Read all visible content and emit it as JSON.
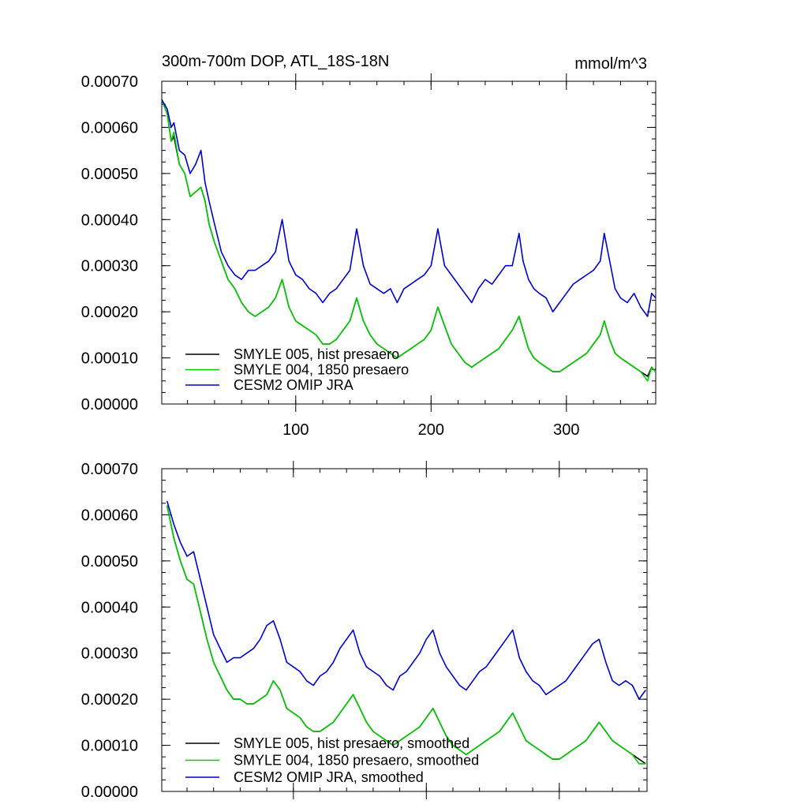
{
  "chart_data": [
    {
      "type": "line",
      "title": "300m-700m DOP, ATL_18S-18N",
      "units": "mmol/m^3",
      "xlabel": "",
      "ylabel": "",
      "xlim": [
        1,
        366
      ],
      "ylim": [
        0,
        0.0007
      ],
      "xticks": [
        100,
        200,
        300
      ],
      "xtick_labels": [
        "100",
        "200",
        "300"
      ],
      "yticks": [
        0,
        0.0001,
        0.0002,
        0.0003,
        0.0004,
        0.0005,
        0.0006,
        0.0007
      ],
      "ytick_labels": [
        "0.00000",
        "0.00010",
        "0.00020",
        "0.00030",
        "0.00040",
        "0.00050",
        "0.00060",
        "0.00070"
      ],
      "legend_position": "bottom-left",
      "series": [
        {
          "name": "SMYLE 005, hist presaero",
          "color": "#000000",
          "x": [
            1,
            5,
            8,
            10,
            14,
            18,
            22,
            26,
            30,
            33,
            36,
            40,
            45,
            50,
            55,
            60,
            65,
            70,
            75,
            80,
            85,
            90,
            95,
            100,
            105,
            110,
            115,
            120,
            125,
            130,
            135,
            140,
            145,
            150,
            155,
            160,
            165,
            170,
            175,
            180,
            185,
            190,
            195,
            200,
            205,
            210,
            215,
            220,
            225,
            230,
            235,
            240,
            245,
            250,
            255,
            260,
            265,
            268,
            272,
            276,
            280,
            285,
            290,
            295,
            300,
            305,
            310,
            315,
            320,
            325,
            328,
            332,
            336,
            340,
            345,
            350,
            355,
            360,
            363,
            366
          ],
          "values": [
            0.00066,
            0.00063,
            0.00057,
            0.00058,
            0.00052,
            0.0005,
            0.00045,
            0.00046,
            0.00047,
            0.00044,
            0.00039,
            0.00035,
            0.00031,
            0.00027,
            0.00025,
            0.00022,
            0.0002,
            0.00019,
            0.0002,
            0.00021,
            0.00023,
            0.00027,
            0.00021,
            0.00018,
            0.00017,
            0.00016,
            0.00015,
            0.00013,
            0.00013,
            0.00014,
            0.00016,
            0.00018,
            0.00023,
            0.00018,
            0.00015,
            0.00013,
            0.00012,
            0.00011,
            0.0001,
            0.00011,
            0.00012,
            0.00013,
            0.00014,
            0.00016,
            0.00021,
            0.00017,
            0.00013,
            0.00011,
            9e-05,
            8e-05,
            9e-05,
            0.0001,
            0.00011,
            0.00012,
            0.00014,
            0.00016,
            0.00019,
            0.00016,
            0.00012,
            0.0001,
            9e-05,
            8e-05,
            7e-05,
            7e-05,
            8e-05,
            9e-05,
            0.0001,
            0.00011,
            0.00013,
            0.00015,
            0.00018,
            0.00014,
            0.00011,
            0.0001,
            9e-05,
            8e-05,
            7e-05,
            6e-05,
            8e-05,
            7e-05
          ]
        },
        {
          "name": "SMYLE 004, 1850 presaero",
          "color": "#00cc00",
          "x": [
            1,
            5,
            8,
            10,
            14,
            18,
            22,
            26,
            30,
            33,
            36,
            40,
            45,
            50,
            55,
            60,
            65,
            70,
            75,
            80,
            85,
            90,
            95,
            100,
            105,
            110,
            115,
            120,
            125,
            130,
            135,
            140,
            145,
            150,
            155,
            160,
            165,
            170,
            175,
            180,
            185,
            190,
            195,
            200,
            205,
            210,
            215,
            220,
            225,
            230,
            235,
            240,
            245,
            250,
            255,
            260,
            265,
            268,
            272,
            276,
            280,
            285,
            290,
            295,
            300,
            305,
            310,
            315,
            320,
            325,
            328,
            332,
            336,
            340,
            345,
            350,
            355,
            360,
            363,
            366
          ],
          "values": [
            0.00066,
            0.00063,
            0.00057,
            0.00059,
            0.00052,
            0.0005,
            0.00045,
            0.00046,
            0.00047,
            0.00044,
            0.00039,
            0.00035,
            0.00031,
            0.00027,
            0.00025,
            0.00022,
            0.0002,
            0.00019,
            0.0002,
            0.00021,
            0.00023,
            0.00027,
            0.00021,
            0.00018,
            0.00017,
            0.00016,
            0.00015,
            0.00013,
            0.00013,
            0.00014,
            0.00016,
            0.00018,
            0.00023,
            0.00018,
            0.00015,
            0.00013,
            0.00012,
            0.00011,
            0.0001,
            0.00011,
            0.00012,
            0.00013,
            0.00014,
            0.00016,
            0.00021,
            0.00017,
            0.00013,
            0.00011,
            9e-05,
            8e-05,
            9e-05,
            0.0001,
            0.00011,
            0.00012,
            0.00014,
            0.00016,
            0.00019,
            0.00016,
            0.00012,
            0.0001,
            9e-05,
            8e-05,
            7e-05,
            7e-05,
            8e-05,
            9e-05,
            0.0001,
            0.00011,
            0.00013,
            0.00015,
            0.00018,
            0.00014,
            0.00011,
            0.0001,
            9e-05,
            8e-05,
            7e-05,
            5e-05,
            8e-05,
            7e-05
          ]
        },
        {
          "name": "CESM2 OMIP JRA",
          "color": "#0000cc",
          "x": [
            1,
            5,
            8,
            10,
            14,
            18,
            22,
            26,
            30,
            33,
            36,
            40,
            45,
            50,
            55,
            60,
            65,
            70,
            75,
            80,
            85,
            90,
            95,
            100,
            105,
            110,
            115,
            120,
            125,
            130,
            135,
            140,
            145,
            150,
            155,
            160,
            165,
            170,
            175,
            180,
            185,
            190,
            195,
            200,
            205,
            210,
            215,
            220,
            225,
            230,
            235,
            240,
            245,
            250,
            255,
            260,
            265,
            268,
            272,
            276,
            280,
            285,
            290,
            295,
            300,
            305,
            310,
            315,
            320,
            325,
            328,
            332,
            336,
            340,
            345,
            350,
            355,
            360,
            363,
            366
          ],
          "values": [
            0.00066,
            0.00064,
            0.0006,
            0.00061,
            0.00055,
            0.00054,
            0.0005,
            0.00052,
            0.00055,
            0.00048,
            0.00044,
            0.00039,
            0.00033,
            0.0003,
            0.00028,
            0.00027,
            0.00029,
            0.00029,
            0.0003,
            0.00031,
            0.00033,
            0.0004,
            0.00031,
            0.00028,
            0.00027,
            0.00025,
            0.00024,
            0.00022,
            0.00024,
            0.00025,
            0.00027,
            0.00029,
            0.00038,
            0.0003,
            0.00026,
            0.00025,
            0.00024,
            0.00025,
            0.00022,
            0.00025,
            0.00026,
            0.00027,
            0.00028,
            0.0003,
            0.00038,
            0.0003,
            0.00028,
            0.00026,
            0.00024,
            0.00022,
            0.00025,
            0.00027,
            0.00026,
            0.00028,
            0.0003,
            0.0003,
            0.00037,
            0.00031,
            0.00027,
            0.00025,
            0.00024,
            0.00023,
            0.0002,
            0.00022,
            0.00024,
            0.00026,
            0.00027,
            0.00028,
            0.00029,
            0.00031,
            0.00037,
            0.00031,
            0.00025,
            0.00023,
            0.00022,
            0.00024,
            0.00021,
            0.00019,
            0.00024,
            0.00023
          ]
        }
      ]
    },
    {
      "type": "line",
      "title": "",
      "xlabel": "",
      "ylabel": "",
      "xlim": [
        1,
        366
      ],
      "ylim": [
        0,
        0.0007
      ],
      "xticks": [
        100,
        200,
        300
      ],
      "xtick_labels": [],
      "yticks": [
        0,
        0.0001,
        0.0002,
        0.0003,
        0.0004,
        0.0005,
        0.0006,
        0.0007
      ],
      "ytick_labels": [
        "0.00000",
        "0.00010",
        "0.00020",
        "0.00030",
        "0.00040",
        "0.00050",
        "0.00060",
        "0.00070"
      ],
      "legend_position": "bottom-left",
      "series": [
        {
          "name": "SMYLE 005, hist presaero, smoothed",
          "color": "#000000",
          "x": [
            5,
            10,
            15,
            20,
            25,
            30,
            35,
            40,
            45,
            50,
            55,
            60,
            65,
            70,
            75,
            80,
            85,
            90,
            95,
            100,
            105,
            110,
            115,
            120,
            125,
            130,
            135,
            140,
            145,
            150,
            155,
            160,
            165,
            170,
            175,
            180,
            185,
            190,
            195,
            200,
            205,
            210,
            215,
            220,
            225,
            230,
            235,
            240,
            245,
            250,
            255,
            260,
            265,
            270,
            275,
            280,
            285,
            290,
            295,
            300,
            305,
            310,
            315,
            320,
            325,
            330,
            335,
            340,
            345,
            350,
            355,
            360,
            365
          ],
          "values": [
            0.00062,
            0.00055,
            0.0005,
            0.00046,
            0.00045,
            0.00039,
            0.00033,
            0.00028,
            0.00025,
            0.00022,
            0.0002,
            0.0002,
            0.00019,
            0.00019,
            0.0002,
            0.00021,
            0.00024,
            0.00022,
            0.00018,
            0.00017,
            0.00016,
            0.00014,
            0.00013,
            0.00013,
            0.00014,
            0.00015,
            0.00017,
            0.00019,
            0.00021,
            0.00018,
            0.00015,
            0.00013,
            0.00012,
            0.00011,
            0.0001,
            0.00011,
            0.00012,
            0.00013,
            0.00014,
            0.00016,
            0.00018,
            0.00015,
            0.00012,
            0.0001,
            9e-05,
            8e-05,
            9e-05,
            0.0001,
            0.00011,
            0.00012,
            0.00013,
            0.00015,
            0.00017,
            0.00014,
            0.00011,
            0.0001,
            9e-05,
            8e-05,
            7e-05,
            7e-05,
            8e-05,
            9e-05,
            0.0001,
            0.00011,
            0.00013,
            0.00015,
            0.00013,
            0.00011,
            0.0001,
            9e-05,
            8e-05,
            7e-05,
            6e-05
          ]
        },
        {
          "name": "SMYLE 004, 1850 presaero, smoothed",
          "color": "#00cc00",
          "x": [
            5,
            10,
            15,
            20,
            25,
            30,
            35,
            40,
            45,
            50,
            55,
            60,
            65,
            70,
            75,
            80,
            85,
            90,
            95,
            100,
            105,
            110,
            115,
            120,
            125,
            130,
            135,
            140,
            145,
            150,
            155,
            160,
            165,
            170,
            175,
            180,
            185,
            190,
            195,
            200,
            205,
            210,
            215,
            220,
            225,
            230,
            235,
            240,
            245,
            250,
            255,
            260,
            265,
            270,
            275,
            280,
            285,
            290,
            295,
            300,
            305,
            310,
            315,
            320,
            325,
            330,
            335,
            340,
            345,
            350,
            355,
            360,
            365
          ],
          "values": [
            0.00062,
            0.00055,
            0.0005,
            0.00046,
            0.00045,
            0.00039,
            0.00033,
            0.00028,
            0.00025,
            0.00022,
            0.0002,
            0.0002,
            0.00019,
            0.00019,
            0.0002,
            0.00021,
            0.00024,
            0.00022,
            0.00018,
            0.00017,
            0.00016,
            0.00014,
            0.00013,
            0.00013,
            0.00014,
            0.00015,
            0.00017,
            0.00019,
            0.00021,
            0.00018,
            0.00015,
            0.00013,
            0.00012,
            0.00011,
            0.0001,
            0.00011,
            0.00012,
            0.00013,
            0.00014,
            0.00016,
            0.00018,
            0.00015,
            0.00012,
            0.0001,
            9e-05,
            8e-05,
            9e-05,
            0.0001,
            0.00011,
            0.00012,
            0.00013,
            0.00015,
            0.00017,
            0.00014,
            0.00011,
            0.0001,
            9e-05,
            8e-05,
            7e-05,
            7e-05,
            8e-05,
            9e-05,
            0.0001,
            0.00011,
            0.00013,
            0.00015,
            0.00013,
            0.00011,
            0.0001,
            9e-05,
            8e-05,
            6e-05,
            6e-05
          ]
        },
        {
          "name": "CESM2 OMIP JRA, smoothed",
          "color": "#0000cc",
          "x": [
            5,
            10,
            15,
            20,
            25,
            30,
            35,
            40,
            45,
            50,
            55,
            60,
            65,
            70,
            75,
            80,
            85,
            90,
            95,
            100,
            105,
            110,
            115,
            120,
            125,
            130,
            135,
            140,
            145,
            150,
            155,
            160,
            165,
            170,
            175,
            180,
            185,
            190,
            195,
            200,
            205,
            210,
            215,
            220,
            225,
            230,
            235,
            240,
            245,
            250,
            255,
            260,
            265,
            270,
            275,
            280,
            285,
            290,
            295,
            300,
            305,
            310,
            315,
            320,
            325,
            330,
            335,
            340,
            345,
            350,
            355,
            360,
            365
          ],
          "values": [
            0.00063,
            0.00058,
            0.00054,
            0.00051,
            0.00052,
            0.00046,
            0.0004,
            0.00034,
            0.00031,
            0.00028,
            0.00029,
            0.00029,
            0.0003,
            0.00031,
            0.00033,
            0.00036,
            0.00037,
            0.00033,
            0.00028,
            0.00027,
            0.00026,
            0.00024,
            0.00023,
            0.00025,
            0.00026,
            0.00028,
            0.00031,
            0.00033,
            0.00035,
            0.0003,
            0.00027,
            0.00026,
            0.00025,
            0.00023,
            0.00022,
            0.00025,
            0.00026,
            0.00028,
            0.0003,
            0.00033,
            0.00035,
            0.0003,
            0.00027,
            0.00025,
            0.00023,
            0.00022,
            0.00024,
            0.00026,
            0.00027,
            0.00029,
            0.00031,
            0.00033,
            0.00035,
            0.00029,
            0.00026,
            0.00024,
            0.00023,
            0.00021,
            0.00022,
            0.00023,
            0.00024,
            0.00026,
            0.00028,
            0.0003,
            0.00032,
            0.00033,
            0.00028,
            0.00024,
            0.00023,
            0.00024,
            0.00023,
            0.0002,
            0.00022
          ]
        }
      ]
    }
  ]
}
